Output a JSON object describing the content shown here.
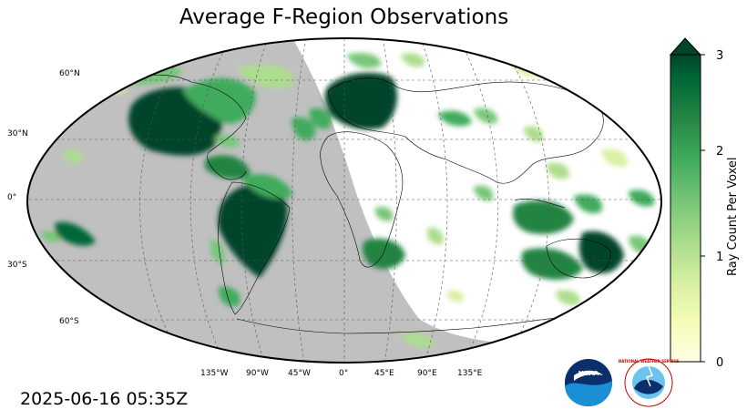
{
  "title": "Average F-Region Observations",
  "timestamp": "2025-06-16 05:35Z",
  "map": {
    "projection": "robinson",
    "central_longitude": 0,
    "night_shade_color": "#c0c0c0",
    "lat_labels": [
      "60°N",
      "30°N",
      "0°",
      "30°S",
      "60°S"
    ],
    "lon_labels": [
      "135°W",
      "90°W",
      "45°W",
      "0°",
      "45°E",
      "90°E",
      "135°E"
    ]
  },
  "colorbar": {
    "label": "Ray Count Per Voxel",
    "ticks": [
      "0",
      "1",
      "2",
      "3"
    ],
    "range": [
      0,
      3
    ],
    "extend": "max",
    "colormap": "YlGn",
    "colors": [
      "#ffffe5",
      "#f7fcb9",
      "#d9f0a3",
      "#addd8e",
      "#78c679",
      "#41ab5d",
      "#238443",
      "#006837",
      "#004529"
    ]
  },
  "logos": {
    "noaa": "NOAA",
    "nws": "NATIONAL WEATHER SERVICE"
  }
}
